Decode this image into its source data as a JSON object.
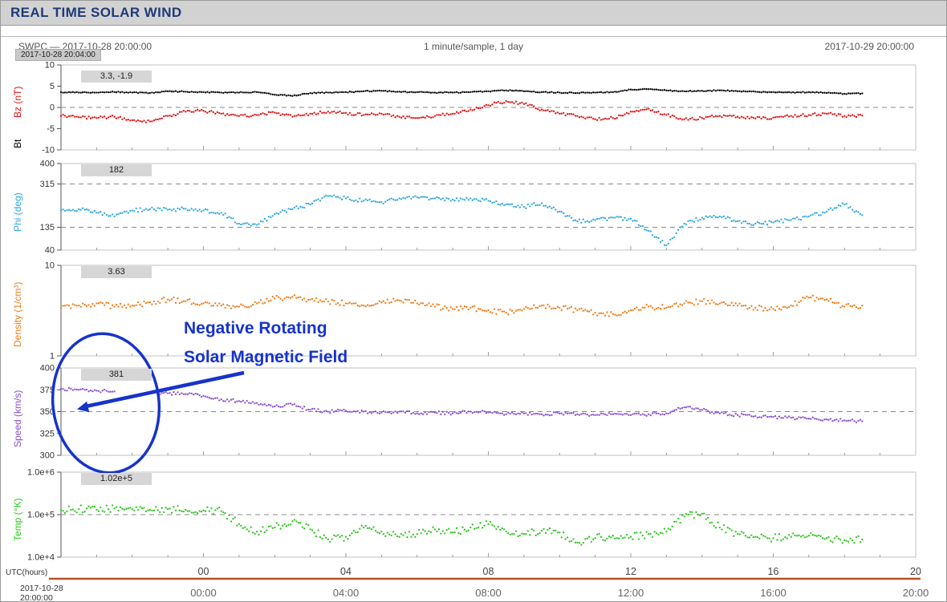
{
  "page": {
    "title": "REAL TIME SOLAR WIND"
  },
  "header": {
    "left": "SWPC — 2017-10-28 20:00:00",
    "center": "1 minute/sample, 1 day",
    "right": "2017-10-29 20:00:00",
    "tooltip": "2017-10-28 20:04:00"
  },
  "annotation": {
    "line1": "Negative Rotating",
    "line2": "Solar Magnetic Field",
    "color": "#1633cc"
  },
  "colors": {
    "titlebar_bg": "#d2d2d2",
    "title_text": "#1e3a78",
    "coverage_bar": "#b5522d",
    "grid_dash": "#888888"
  },
  "panels": [
    {
      "id": "bz-bt",
      "badge": "3.3, -1.9",
      "scale": {
        "type": "linear",
        "min": -10,
        "max": 10
      },
      "ylabels": [
        {
          "text": "Bz (nT)",
          "color": "#e01212"
        },
        {
          "text": "Bt",
          "color": "#000000"
        }
      ],
      "ticks": [
        {
          "v": 10,
          "label": "10"
        },
        {
          "v": 5,
          "label": "5"
        },
        {
          "v": 0,
          "label": "0"
        },
        {
          "v": -5,
          "label": "-5"
        },
        {
          "v": -10,
          "label": "-10"
        }
      ],
      "dashed": [
        0
      ]
    },
    {
      "id": "phi",
      "badge": "182",
      "scale": {
        "type": "linear",
        "min": 40,
        "max": 400
      },
      "ylabels": [
        {
          "text": "Phi (deg)",
          "color": "#2fa8dc"
        }
      ],
      "ticks": [
        {
          "v": 400,
          "label": "400"
        },
        {
          "v": 315,
          "label": "315"
        },
        {
          "v": 135,
          "label": "135"
        },
        {
          "v": 40,
          "label": "40"
        }
      ],
      "dashed": [
        315,
        135
      ]
    },
    {
      "id": "density",
      "badge": "3.63",
      "scale": {
        "type": "log",
        "min": 1,
        "max": 10
      },
      "ylabels": [
        {
          "text": "Density (1/cm³)",
          "color": "#ee7d1a"
        }
      ],
      "ticks": [
        {
          "v": 10,
          "label": "10"
        },
        {
          "v": 1,
          "label": "1"
        }
      ],
      "dashed": []
    },
    {
      "id": "speed",
      "badge": "381",
      "scale": {
        "type": "linear",
        "min": 300,
        "max": 400
      },
      "ylabels": [
        {
          "text": "Speed (km/s)",
          "color": "#8a4fd0"
        }
      ],
      "ticks": [
        {
          "v": 400,
          "label": "400"
        },
        {
          "v": 375,
          "label": "375"
        },
        {
          "v": 350,
          "label": "350"
        },
        {
          "v": 325,
          "label": "325"
        },
        {
          "v": 300,
          "label": "300"
        }
      ],
      "dashed": [
        350
      ]
    },
    {
      "id": "temp",
      "badge": "1.02e+5",
      "scale": {
        "type": "log",
        "min": 10000,
        "max": 1000000
      },
      "ylabels": [
        {
          "text": "Temp (°K)",
          "color": "#2ec520"
        }
      ],
      "ticks": [
        {
          "v": 1000000,
          "label": "1.0e+6"
        },
        {
          "v": 100000,
          "label": "1.0e+5"
        },
        {
          "v": 10000,
          "label": "1.0e+4"
        }
      ],
      "dashed": [
        100000
      ]
    }
  ],
  "xaxis": {
    "label": "UTC(hours)",
    "hour_ticks": [
      {
        "h": 4,
        "label": "00"
      },
      {
        "h": 8,
        "label": "04"
      },
      {
        "h": 12,
        "label": "08"
      },
      {
        "h": 16,
        "label": "12"
      },
      {
        "h": 20,
        "label": "16"
      },
      {
        "h": 24,
        "label": "20"
      }
    ],
    "bottom_times": [
      "00:00",
      "04:00",
      "08:00",
      "12:00",
      "16:00",
      "20:00"
    ],
    "bottom_date": [
      "2017-10-28",
      "20:00:00"
    ]
  },
  "chart_data": {
    "type": "scatter",
    "title": "REAL TIME SOLAR WIND",
    "cadence": "1 minute/sample",
    "span": "1 day",
    "x_start": "2017-10-28 20:00:00",
    "x_end": "2017-10-29 20:00:00",
    "x_label": "UTC(hours)",
    "x_hours": [
      0,
      0.5,
      1,
      1.5,
      2,
      2.5,
      3,
      3.5,
      4,
      4.5,
      5,
      5.5,
      6,
      6.5,
      7,
      7.5,
      8,
      8.5,
      9,
      9.5,
      10,
      10.5,
      11,
      11.5,
      12,
      12.5,
      13,
      13.5,
      14,
      14.5,
      15,
      15.5,
      16,
      16.5,
      17,
      17.5,
      18,
      18.5,
      19,
      19.5,
      20,
      20.5,
      21,
      21.5,
      22,
      22.5
    ],
    "series": [
      {
        "name": "Bt",
        "panel": 0,
        "color": "#000000",
        "units": "nT",
        "ylim": [
          -10,
          10
        ],
        "jitter": 0.12,
        "values": [
          3.6,
          3.5,
          3.5,
          3.6,
          3.5,
          3.4,
          3.8,
          3.7,
          3.6,
          3.5,
          3.5,
          3.6,
          3.0,
          2.7,
          3.4,
          3.5,
          3.6,
          3.8,
          3.9,
          3.7,
          3.6,
          3.5,
          3.5,
          3.6,
          3.8,
          4.0,
          3.8,
          3.6,
          3.5,
          3.4,
          3.5,
          3.6,
          4.2,
          4.3,
          4.0,
          3.8,
          3.9,
          4.0,
          3.8,
          3.7,
          3.6,
          3.5,
          3.6,
          3.4,
          3.2,
          3.3
        ]
      },
      {
        "name": "Bz",
        "panel": 0,
        "color": "#e01212",
        "units": "nT",
        "ylim": [
          -10,
          10
        ],
        "jitter": 0.35,
        "values": [
          -2.0,
          -2.3,
          -2.5,
          -2.2,
          -3.0,
          -3.3,
          -2.0,
          -1.0,
          -0.8,
          -1.5,
          -2.0,
          -1.8,
          -1.2,
          -2.2,
          -1.5,
          -1.0,
          -1.3,
          -1.8,
          -1.5,
          -2.2,
          -2.5,
          -2.0,
          -1.5,
          -0.5,
          0.5,
          1.5,
          0.8,
          -0.5,
          -1.5,
          -2.0,
          -2.8,
          -2.5,
          -1.0,
          -0.3,
          -1.8,
          -2.8,
          -2.5,
          -2.0,
          -2.2,
          -2.6,
          -2.4,
          -2.0,
          -1.8,
          -1.5,
          -2.0,
          -1.9
        ]
      },
      {
        "name": "Phi",
        "panel": 1,
        "color": "#2fa8dc",
        "units": "deg",
        "ylim": [
          40,
          400
        ],
        "jitter": 8,
        "values": [
          205,
          210,
          195,
          180,
          205,
          210,
          208,
          212,
          205,
          195,
          150,
          145,
          190,
          210,
          230,
          265,
          255,
          245,
          240,
          255,
          260,
          255,
          250,
          255,
          245,
          230,
          220,
          235,
          200,
          160,
          165,
          175,
          170,
          120,
          60,
          150,
          175,
          180,
          160,
          150,
          155,
          165,
          180,
          200,
          230,
          185
        ]
      },
      {
        "name": "Density",
        "panel": 2,
        "color": "#ee7d1a",
        "units": "1/cm³",
        "ylim": [
          1,
          10
        ],
        "jitter": 0.03,
        "values": [
          3.4,
          3.6,
          3.8,
          3.5,
          3.6,
          3.9,
          4.2,
          4.0,
          3.8,
          3.6,
          3.5,
          3.8,
          4.3,
          4.5,
          4.2,
          4.0,
          3.8,
          3.6,
          3.9,
          4.1,
          3.8,
          3.5,
          3.3,
          3.4,
          3.2,
          3.0,
          3.3,
          3.6,
          3.4,
          3.2,
          3.0,
          2.9,
          3.2,
          3.5,
          3.4,
          3.8,
          4.0,
          3.8,
          3.6,
          3.4,
          3.3,
          3.6,
          4.4,
          4.2,
          3.5,
          3.6
        ]
      },
      {
        "name": "Speed",
        "panel": 3,
        "color": "#8a4fd0",
        "units": "km/s",
        "ylim": [
          300,
          400
        ],
        "jitter": 1.8,
        "values": [
          376,
          375,
          374,
          373,
          null,
          372,
          371,
          370,
          368,
          364,
          362,
          360,
          356,
          358,
          352,
          350,
          351,
          350,
          349,
          350,
          348,
          349,
          348,
          350,
          349,
          347,
          348,
          347,
          348,
          347,
          346,
          347,
          346,
          347,
          348,
          355,
          352,
          348,
          346,
          345,
          344,
          343,
          342,
          341,
          340,
          339
        ]
      },
      {
        "name": "Temp",
        "panel": 4,
        "color": "#2ec520",
        "units": "°K",
        "ylim": [
          10000,
          1000000
        ],
        "jitter": 0.09,
        "values": [
          130000,
          135000,
          130000,
          140000,
          135000,
          130000,
          135000,
          130000,
          125000,
          120000,
          60000,
          40000,
          50000,
          70000,
          45000,
          26000,
          30000,
          50000,
          40000,
          30000,
          35000,
          45000,
          38000,
          50000,
          60000,
          40000,
          35000,
          42000,
          38000,
          22000,
          28000,
          32000,
          30000,
          35000,
          40000,
          90000,
          105000,
          50000,
          35000,
          30000,
          28000,
          30000,
          32000,
          28000,
          25000,
          26000
        ]
      }
    ]
  }
}
